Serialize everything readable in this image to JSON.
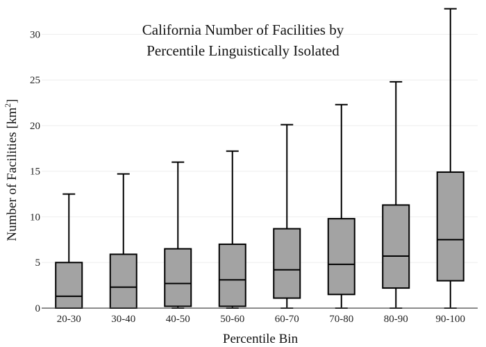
{
  "chart_data": {
    "type": "box",
    "title_lines": [
      "California Number of Facilities by",
      "Percentile Linguistically Isolated"
    ],
    "xlabel": "Percentile Bin",
    "ylabel_main": "Number of Facilities  [km",
    "ylabel_sup": "2",
    "ylabel_close": "]",
    "ylim": [
      0,
      33
    ],
    "yticks": [
      0,
      5,
      10,
      15,
      20,
      25,
      30
    ],
    "categories": [
      "20-30",
      "30-40",
      "40-50",
      "50-60",
      "60-70",
      "70-80",
      "80-90",
      "90-100"
    ],
    "boxes": [
      {
        "min": 0,
        "q1": 0,
        "median": 1.3,
        "q3": 5.0,
        "max": 12.5
      },
      {
        "min": 0,
        "q1": 0,
        "median": 2.3,
        "q3": 5.9,
        "max": 14.7
      },
      {
        "min": 0,
        "q1": 0.2,
        "median": 2.7,
        "q3": 6.5,
        "max": 16.0
      },
      {
        "min": 0,
        "q1": 0.2,
        "median": 3.1,
        "q3": 7.0,
        "max": 17.2
      },
      {
        "min": 0,
        "q1": 1.1,
        "median": 4.2,
        "q3": 8.7,
        "max": 20.1
      },
      {
        "min": 0,
        "q1": 1.5,
        "median": 4.8,
        "q3": 9.8,
        "max": 22.3
      },
      {
        "min": 0,
        "q1": 2.2,
        "median": 5.7,
        "q3": 11.3,
        "max": 24.8
      },
      {
        "min": 0,
        "q1": 3.0,
        "median": 7.5,
        "q3": 14.9,
        "max": 32.8
      }
    ],
    "box_fill": "#a3a3a3",
    "line_color": "#000000",
    "grid_color": "#eeeeee",
    "grid": true
  }
}
